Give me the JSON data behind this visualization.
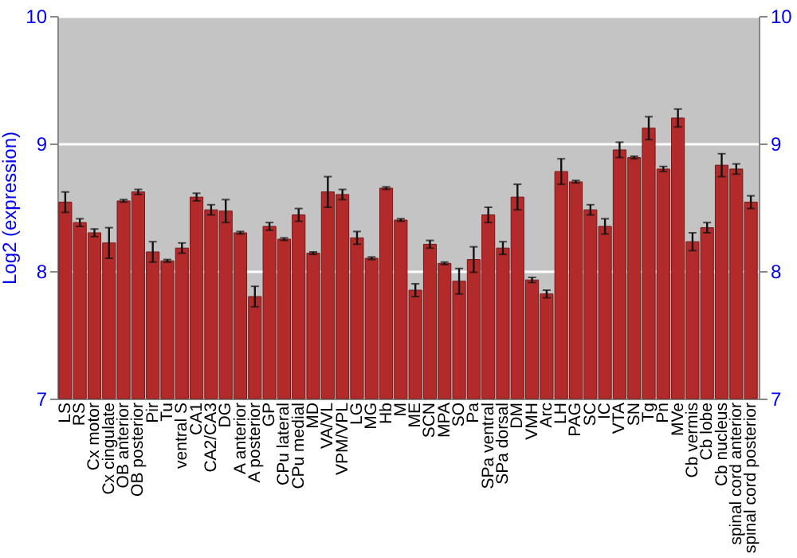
{
  "chart_data": {
    "type": "bar",
    "ylabel": "Log2 (expression)",
    "categories": [
      "LS",
      "RS",
      "Cx motor",
      "Cx cingulate",
      "OB anterior",
      "OB posterior",
      "Pir",
      "Tu",
      "ventral S",
      "CA1",
      "CA2/CA3",
      "DG",
      "A anterior",
      "A posterior",
      "GP",
      "CPu lateral",
      "CPu medial",
      "MD",
      "VA/VL",
      "VPM/VPL",
      "LG",
      "MG",
      "Hb",
      "M",
      "ME",
      "SCN",
      "MPA",
      "SO",
      "Pa",
      "SPa ventral",
      "SPa dorsal",
      "DM",
      "VMH",
      "Arc",
      "LH",
      "PAG",
      "SC",
      "IC",
      "VTA",
      "SN",
      "Tg",
      "Pn",
      "MVe",
      "Cb vermis",
      "Cb lobe",
      "Cb nucleus",
      "spinal cord anterior",
      "spinal cord posterior"
    ],
    "values": [
      8.54,
      8.38,
      8.3,
      8.22,
      8.55,
      8.62,
      8.15,
      8.08,
      8.18,
      8.58,
      8.48,
      8.47,
      8.3,
      7.8,
      8.35,
      8.25,
      8.44,
      8.14,
      8.62,
      8.6,
      8.26,
      8.1,
      8.65,
      8.4,
      7.85,
      8.21,
      8.06,
      7.92,
      8.09,
      8.44,
      8.18,
      8.58,
      7.93,
      7.82,
      8.78,
      8.7,
      8.48,
      8.35,
      8.95,
      8.89,
      9.12,
      8.8,
      9.2,
      8.23,
      8.34,
      8.83,
      8.8,
      8.54
    ],
    "errors": [
      0.08,
      0.03,
      0.03,
      0.12,
      0.01,
      0.02,
      0.08,
      0.01,
      0.04,
      0.03,
      0.04,
      0.09,
      0.01,
      0.08,
      0.03,
      0.01,
      0.05,
      0.01,
      0.12,
      0.04,
      0.05,
      0.01,
      0.01,
      0.01,
      0.05,
      0.03,
      0.01,
      0.1,
      0.1,
      0.06,
      0.05,
      0.1,
      0.02,
      0.03,
      0.1,
      0.01,
      0.04,
      0.06,
      0.06,
      0.01,
      0.09,
      0.02,
      0.07,
      0.07,
      0.04,
      0.09,
      0.04,
      0.05
    ],
    "color": "#b22a2a",
    "ylim": [
      7,
      10
    ],
    "yticks": [
      7,
      8,
      9,
      10
    ],
    "y2lim": [
      7,
      10
    ],
    "y2ticks": [
      7,
      8,
      9,
      10
    ],
    "grid": "y"
  }
}
